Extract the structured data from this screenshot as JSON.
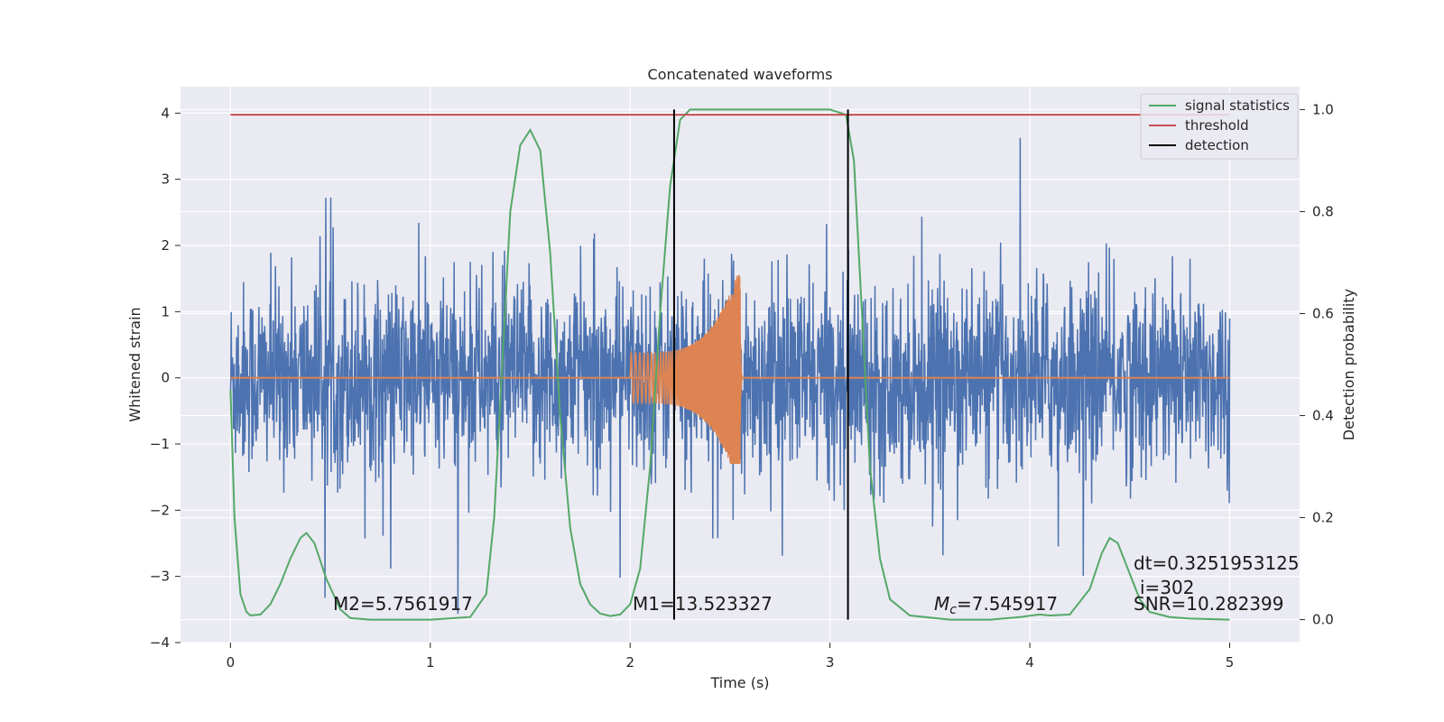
{
  "chart_data": {
    "type": "line",
    "title": "Concatenated waveforms",
    "xlabel": "Time (s)",
    "ylabel": "Whitened strain",
    "y2label": "Detection probability",
    "xlim": [
      -0.25,
      5.35
    ],
    "ylim": [
      -4.0,
      4.4
    ],
    "y2lim": [
      -0.045,
      1.045
    ],
    "xticks": [
      0,
      1,
      2,
      3,
      4,
      5
    ],
    "yticks": [
      -4,
      -3,
      -2,
      -1,
      0,
      1,
      2,
      3,
      4
    ],
    "y2ticks": [
      0.0,
      0.2,
      0.4,
      0.6,
      0.8,
      1.0
    ],
    "xtick_labels": [
      "0",
      "1",
      "2",
      "3",
      "4",
      "5"
    ],
    "ytick_labels": [
      "−4",
      "−3",
      "−2",
      "−1",
      "0",
      "1",
      "2",
      "3",
      "4"
    ],
    "y2tick_labels": [
      "0.0",
      "0.2",
      "0.4",
      "0.6",
      "0.8",
      "1.0"
    ],
    "grid": true,
    "legend_position": "top-right",
    "colors": {
      "background": "#eaeaf2",
      "grid": "#ffffff",
      "strain": "#4c72b0",
      "template": "#dd8452",
      "signal_statistics": "#55a868",
      "threshold": "#c44e52",
      "detection": "#000000"
    },
    "series": [
      {
        "name": "signal statistics",
        "axis": "right",
        "x": [
          0.0,
          0.02,
          0.05,
          0.08,
          0.1,
          0.15,
          0.2,
          0.25,
          0.3,
          0.35,
          0.38,
          0.42,
          0.48,
          0.55,
          0.6,
          0.7,
          0.8,
          1.0,
          1.2,
          1.28,
          1.32,
          1.36,
          1.4,
          1.45,
          1.5,
          1.55,
          1.6,
          1.65,
          1.7,
          1.75,
          1.8,
          1.85,
          1.9,
          1.95,
          2.0,
          2.05,
          2.1,
          2.15,
          2.2,
          2.25,
          2.3,
          2.5,
          2.8,
          3.0,
          3.08,
          3.12,
          3.16,
          3.2,
          3.25,
          3.3,
          3.4,
          3.6,
          3.8,
          3.95,
          4.05,
          4.1,
          4.2,
          4.3,
          4.36,
          4.4,
          4.44,
          4.5,
          4.55,
          4.6,
          4.7,
          4.8,
          5.0
        ],
        "values": [
          0.45,
          0.2,
          0.05,
          0.015,
          0.008,
          0.01,
          0.03,
          0.07,
          0.12,
          0.16,
          0.17,
          0.15,
          0.08,
          0.02,
          0.003,
          0.0,
          0.0,
          0.0,
          0.005,
          0.05,
          0.2,
          0.5,
          0.8,
          0.93,
          0.96,
          0.92,
          0.72,
          0.4,
          0.18,
          0.07,
          0.03,
          0.012,
          0.007,
          0.01,
          0.03,
          0.1,
          0.3,
          0.6,
          0.85,
          0.98,
          1.0,
          1.0,
          1.0,
          1.0,
          0.99,
          0.9,
          0.6,
          0.3,
          0.12,
          0.04,
          0.008,
          0.0,
          0.0,
          0.005,
          0.01,
          0.008,
          0.01,
          0.06,
          0.13,
          0.16,
          0.15,
          0.09,
          0.04,
          0.015,
          0.005,
          0.002,
          0.0
        ]
      },
      {
        "name": "threshold",
        "axis": "right",
        "x": [
          0,
          5
        ],
        "values": [
          0.99,
          0.99
        ]
      },
      {
        "name": "detection",
        "axis": "right",
        "x": [
          2.22,
          3.09
        ],
        "values": [
          0.0,
          1.0
        ]
      }
    ],
    "strain_noise": {
      "axis": "left",
      "x_range": [
        0,
        5
      ],
      "typical_amplitude": 1.3,
      "peak_positive": 4.0,
      "peak_negative": -3.6
    },
    "template": {
      "axis": "left",
      "x_start": 2.0,
      "x_end": 2.55,
      "initial_amplitude": 0.38,
      "peak_amplitude": 1.7,
      "peak_negative": -1.3
    },
    "annotations": {
      "m2": "M2=5.7561917",
      "m1": "M1=13.523327",
      "mc_symbol": "M",
      "mc_sub": "c",
      "mc_value": "=7.545917",
      "dt": "dt=0.3251953125",
      "i": "i=302",
      "snr": "SNR=10.282399"
    }
  }
}
